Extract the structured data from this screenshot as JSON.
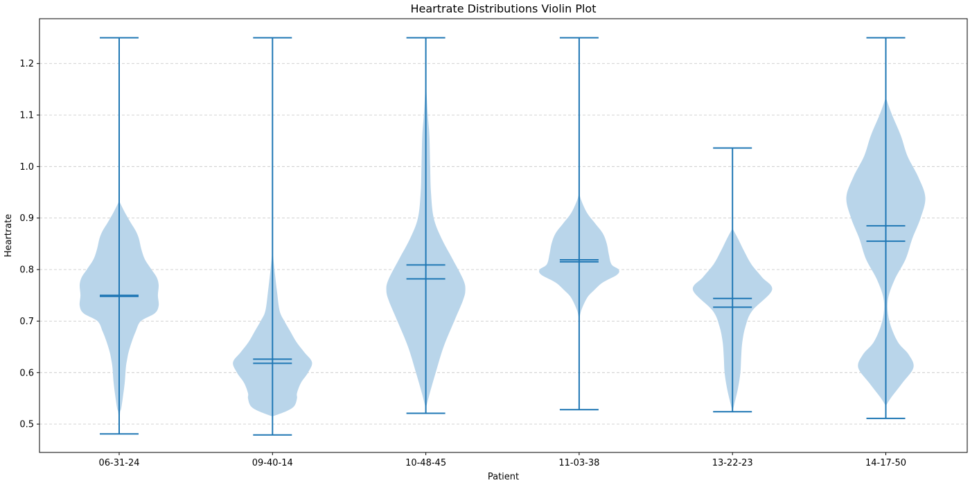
{
  "chart_data": {
    "type": "violin",
    "title": "Heartrate Distributions Violin Plot",
    "xlabel": "Patient",
    "ylabel": "Heartrate",
    "ylim": [
      0.445,
      1.287
    ],
    "yticks": [
      0.5,
      0.6,
      0.7,
      0.8,
      0.9,
      1.0,
      1.1,
      1.2
    ],
    "ytick_labels": [
      "0.5",
      "0.6",
      "0.7",
      "0.8",
      "0.9",
      "1.0",
      "1.1",
      "1.2"
    ],
    "grid": "y-dashed",
    "color": "#1f77b4",
    "fill_color": "#b9d5ea",
    "categories": [
      "06-31-24",
      "09-40-14",
      "10-48-45",
      "11-03-38",
      "13-22-23",
      "14-17-50"
    ],
    "violins": [
      {
        "name": "06-31-24",
        "min": 0.481,
        "max": 1.25,
        "mean": 0.748,
        "median": 0.75,
        "profile": [
          [
            0.48,
            0.0
          ],
          [
            0.52,
            0.02
          ],
          [
            0.53,
            0.05
          ],
          [
            0.55,
            0.09
          ],
          [
            0.58,
            0.14
          ],
          [
            0.61,
            0.17
          ],
          [
            0.625,
            0.2
          ],
          [
            0.64,
            0.24
          ],
          [
            0.66,
            0.32
          ],
          [
            0.68,
            0.42
          ],
          [
            0.7,
            0.55
          ],
          [
            0.715,
            0.9
          ],
          [
            0.73,
            1.0
          ],
          [
            0.75,
            0.98
          ],
          [
            0.77,
            1.0
          ],
          [
            0.785,
            0.95
          ],
          [
            0.8,
            0.82
          ],
          [
            0.82,
            0.65
          ],
          [
            0.84,
            0.56
          ],
          [
            0.86,
            0.5
          ],
          [
            0.875,
            0.42
          ],
          [
            0.89,
            0.3
          ],
          [
            0.91,
            0.15
          ],
          [
            0.93,
            0.02
          ],
          [
            0.935,
            0.0
          ]
        ]
      },
      {
        "name": "09-40-14",
        "min": 0.479,
        "max": 1.25,
        "mean": 0.626,
        "median": 0.618,
        "profile": [
          [
            0.515,
            0.0
          ],
          [
            0.525,
            0.35
          ],
          [
            0.535,
            0.55
          ],
          [
            0.55,
            0.62
          ],
          [
            0.56,
            0.62
          ],
          [
            0.58,
            0.72
          ],
          [
            0.6,
            0.9
          ],
          [
            0.62,
            1.0
          ],
          [
            0.64,
            0.8
          ],
          [
            0.66,
            0.6
          ],
          [
            0.68,
            0.45
          ],
          [
            0.7,
            0.3
          ],
          [
            0.72,
            0.18
          ],
          [
            0.76,
            0.11
          ],
          [
            0.8,
            0.05
          ],
          [
            0.83,
            0.01
          ],
          [
            0.84,
            0.0
          ]
        ]
      },
      {
        "name": "10-48-45",
        "min": 0.521,
        "max": 1.25,
        "mean": 0.809,
        "median": 0.782,
        "profile": [
          [
            0.53,
            0.0
          ],
          [
            0.56,
            0.1
          ],
          [
            0.6,
            0.25
          ],
          [
            0.65,
            0.45
          ],
          [
            0.7,
            0.72
          ],
          [
            0.74,
            0.94
          ],
          [
            0.76,
            1.0
          ],
          [
            0.78,
            0.95
          ],
          [
            0.82,
            0.68
          ],
          [
            0.86,
            0.4
          ],
          [
            0.9,
            0.2
          ],
          [
            0.95,
            0.13
          ],
          [
            1.0,
            0.11
          ],
          [
            1.06,
            0.09
          ],
          [
            1.1,
            0.05
          ],
          [
            1.14,
            0.02
          ],
          [
            1.17,
            0.0
          ]
        ]
      },
      {
        "name": "11-03-38",
        "min": 0.528,
        "max": 1.25,
        "mean": 0.819,
        "median": 0.815,
        "profile": [
          [
            0.7,
            0.0
          ],
          [
            0.72,
            0.05
          ],
          [
            0.745,
            0.2
          ],
          [
            0.76,
            0.38
          ],
          [
            0.775,
            0.6
          ],
          [
            0.79,
            0.96
          ],
          [
            0.8,
            1.0
          ],
          [
            0.81,
            0.82
          ],
          [
            0.83,
            0.75
          ],
          [
            0.85,
            0.7
          ],
          [
            0.87,
            0.6
          ],
          [
            0.89,
            0.4
          ],
          [
            0.91,
            0.2
          ],
          [
            0.935,
            0.05
          ],
          [
            0.95,
            0.0
          ]
        ]
      },
      {
        "name": "13-22-23",
        "min": 0.524,
        "max": 1.036,
        "mean": 0.744,
        "median": 0.727,
        "profile": [
          [
            0.525,
            0.0
          ],
          [
            0.54,
            0.05
          ],
          [
            0.57,
            0.14
          ],
          [
            0.6,
            0.2
          ],
          [
            0.63,
            0.22
          ],
          [
            0.66,
            0.25
          ],
          [
            0.69,
            0.33
          ],
          [
            0.72,
            0.5
          ],
          [
            0.76,
            1.0
          ],
          [
            0.785,
            0.75
          ],
          [
            0.81,
            0.48
          ],
          [
            0.835,
            0.3
          ],
          [
            0.86,
            0.14
          ],
          [
            0.88,
            0.0
          ]
        ]
      },
      {
        "name": "14-17-50",
        "min": 0.511,
        "max": 1.25,
        "mean": 0.885,
        "median": 0.855,
        "profile": [
          [
            0.535,
            0.0
          ],
          [
            0.55,
            0.12
          ],
          [
            0.58,
            0.42
          ],
          [
            0.61,
            0.7
          ],
          [
            0.635,
            0.58
          ],
          [
            0.66,
            0.3
          ],
          [
            0.7,
            0.09
          ],
          [
            0.74,
            0.05
          ],
          [
            0.78,
            0.22
          ],
          [
            0.82,
            0.5
          ],
          [
            0.86,
            0.67
          ],
          [
            0.9,
            0.88
          ],
          [
            0.94,
            1.0
          ],
          [
            0.98,
            0.82
          ],
          [
            1.02,
            0.55
          ],
          [
            1.06,
            0.38
          ],
          [
            1.1,
            0.16
          ],
          [
            1.13,
            0.02
          ],
          [
            1.14,
            0.0
          ]
        ]
      }
    ]
  }
}
